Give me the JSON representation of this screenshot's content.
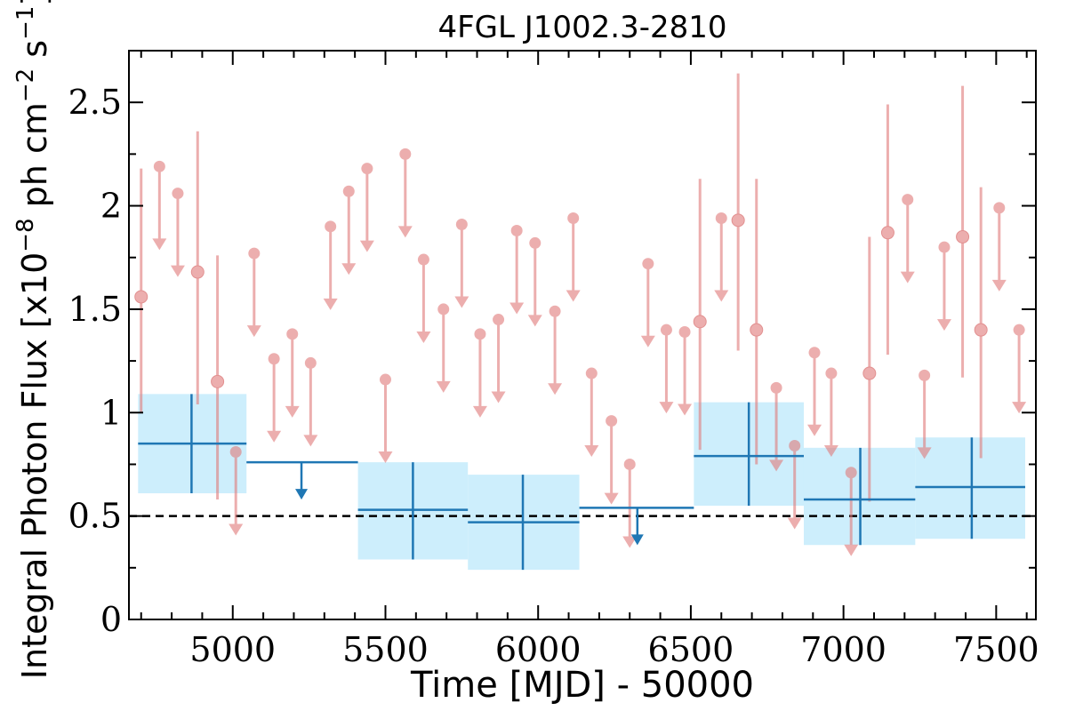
{
  "chart_data": {
    "type": "scatter",
    "title": "4FGL J1002.3-2810",
    "xlabel": "Time [MJD] - 50000",
    "ylabel_parts": [
      "Integral Photon Flux [x10",
      "−8",
      " ph cm",
      "−2",
      " s",
      "−1",
      "]"
    ],
    "xlim": [
      4660,
      7630
    ],
    "ylim": [
      0,
      2.75
    ],
    "x_ticks": [
      5000,
      5500,
      6000,
      6500,
      7000,
      7500
    ],
    "x_tick_labels": [
      "5000",
      "5500",
      "6000",
      "6500",
      "7000",
      "7500"
    ],
    "y_ticks": [
      0,
      0.5,
      1,
      1.5,
      2,
      2.5
    ],
    "y_tick_labels": [
      "0",
      "0.5",
      "1",
      "1.5",
      "2",
      "2.5"
    ],
    "reference_line": 0.5,
    "colors": {
      "fine_bins": "#e07a7a",
      "coarse_bins": "#1f77b4",
      "coarse_band": "#cdeefc",
      "reference": "#000000"
    },
    "fine_bins_detections": [
      {
        "x": 4700,
        "y": 1.56,
        "lo": 1.0,
        "hi": 2.18
      },
      {
        "x": 4885,
        "y": 1.68,
        "lo": 1.04,
        "hi": 2.36
      },
      {
        "x": 4950,
        "y": 1.15,
        "lo": 0.58,
        "hi": 1.76
      },
      {
        "x": 6530,
        "y": 1.44,
        "lo": 0.82,
        "hi": 2.13
      },
      {
        "x": 6655,
        "y": 1.93,
        "lo": 1.3,
        "hi": 2.64
      },
      {
        "x": 6715,
        "y": 1.4,
        "lo": 0.75,
        "hi": 2.13
      },
      {
        "x": 7085,
        "y": 1.19,
        "lo": 0.57,
        "hi": 1.85
      },
      {
        "x": 7145,
        "y": 1.87,
        "lo": 1.28,
        "hi": 2.49
      },
      {
        "x": 7390,
        "y": 1.85,
        "lo": 1.17,
        "hi": 2.58
      },
      {
        "x": 7450,
        "y": 1.4,
        "lo": 0.78,
        "hi": 2.09
      }
    ],
    "fine_bins_upper_limits": [
      {
        "x": 4760,
        "y": 2.19
      },
      {
        "x": 4820,
        "y": 2.06
      },
      {
        "x": 5010,
        "y": 0.81
      },
      {
        "x": 5070,
        "y": 1.77
      },
      {
        "x": 5135,
        "y": 1.26
      },
      {
        "x": 5195,
        "y": 1.38
      },
      {
        "x": 5255,
        "y": 1.24
      },
      {
        "x": 5320,
        "y": 1.9
      },
      {
        "x": 5380,
        "y": 2.07
      },
      {
        "x": 5440,
        "y": 2.18
      },
      {
        "x": 5500,
        "y": 1.16
      },
      {
        "x": 5565,
        "y": 2.25
      },
      {
        "x": 5625,
        "y": 1.74
      },
      {
        "x": 5690,
        "y": 1.5
      },
      {
        "x": 5750,
        "y": 1.91
      },
      {
        "x": 5810,
        "y": 1.38
      },
      {
        "x": 5870,
        "y": 1.45
      },
      {
        "x": 5930,
        "y": 1.88
      },
      {
        "x": 5990,
        "y": 1.82
      },
      {
        "x": 6055,
        "y": 1.49
      },
      {
        "x": 6115,
        "y": 1.94
      },
      {
        "x": 6175,
        "y": 1.19
      },
      {
        "x": 6240,
        "y": 0.96
      },
      {
        "x": 6300,
        "y": 0.75
      },
      {
        "x": 6360,
        "y": 1.72
      },
      {
        "x": 6420,
        "y": 1.4
      },
      {
        "x": 6480,
        "y": 1.39
      },
      {
        "x": 6600,
        "y": 1.94
      },
      {
        "x": 6780,
        "y": 1.12
      },
      {
        "x": 6840,
        "y": 0.84
      },
      {
        "x": 6905,
        "y": 1.29
      },
      {
        "x": 6960,
        "y": 1.19
      },
      {
        "x": 7025,
        "y": 0.71
      },
      {
        "x": 7210,
        "y": 2.03
      },
      {
        "x": 7265,
        "y": 1.18
      },
      {
        "x": 7330,
        "y": 1.8
      },
      {
        "x": 7510,
        "y": 1.99
      },
      {
        "x": 7575,
        "y": 1.4
      }
    ],
    "coarse_bins_detections": [
      {
        "x": 4865,
        "x0": 4690,
        "x1": 5045,
        "y": 0.85,
        "lo": 0.61,
        "hi": 1.09
      },
      {
        "x": 5590,
        "x0": 5410,
        "x1": 5770,
        "y": 0.53,
        "lo": 0.29,
        "hi": 0.76
      },
      {
        "x": 5950,
        "x0": 5770,
        "x1": 6135,
        "y": 0.47,
        "lo": 0.24,
        "hi": 0.7
      },
      {
        "x": 6690,
        "x0": 6510,
        "x1": 6870,
        "y": 0.79,
        "lo": 0.55,
        "hi": 1.05
      },
      {
        "x": 7055,
        "x0": 6870,
        "x1": 7235,
        "y": 0.58,
        "lo": 0.36,
        "hi": 0.83
      },
      {
        "x": 7420,
        "x0": 7235,
        "x1": 7595,
        "y": 0.64,
        "lo": 0.39,
        "hi": 0.88
      }
    ],
    "coarse_bins_upper_limits": [
      {
        "x": 5225,
        "x0": 5045,
        "x1": 5410,
        "y": 0.76
      },
      {
        "x": 6325,
        "x0": 6135,
        "x1": 6510,
        "y": 0.54
      }
    ]
  }
}
